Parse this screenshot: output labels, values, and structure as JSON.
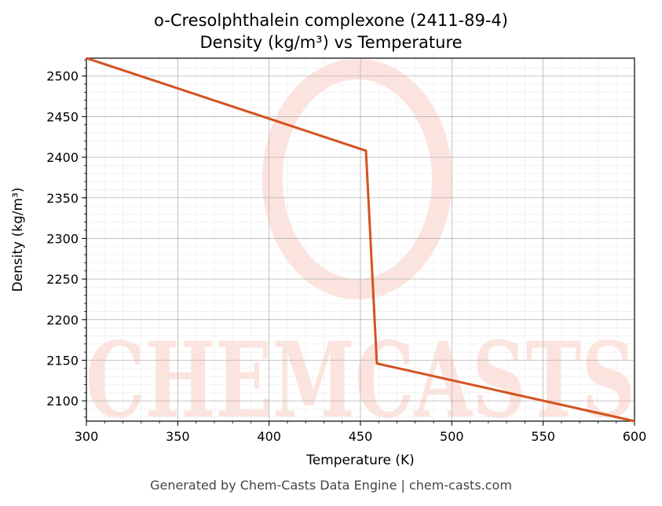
{
  "chart_data": {
    "type": "line",
    "title_line1": "o-Cresolphthalein complexone (2411-89-4)",
    "title_line2": "Density (kg/m³) vs Temperature",
    "xlabel": "Temperature (K)",
    "ylabel": "Density (kg/m³)",
    "xlim": [
      300,
      600
    ],
    "ylim": [
      2075,
      2522
    ],
    "xticks": [
      300,
      350,
      400,
      450,
      500,
      550,
      600
    ],
    "yticks": [
      2100,
      2150,
      2200,
      2250,
      2300,
      2350,
      2400,
      2450,
      2500
    ],
    "grid": true,
    "series": [
      {
        "color": "#d4521f",
        "x": [
          300,
          453,
          459,
          600
        ],
        "y": [
          2522,
          2408,
          2146,
          2075
        ]
      }
    ],
    "watermark": "CHEMCASTS",
    "footer": "Generated by Chem-Casts Data Engine | chem-casts.com"
  }
}
